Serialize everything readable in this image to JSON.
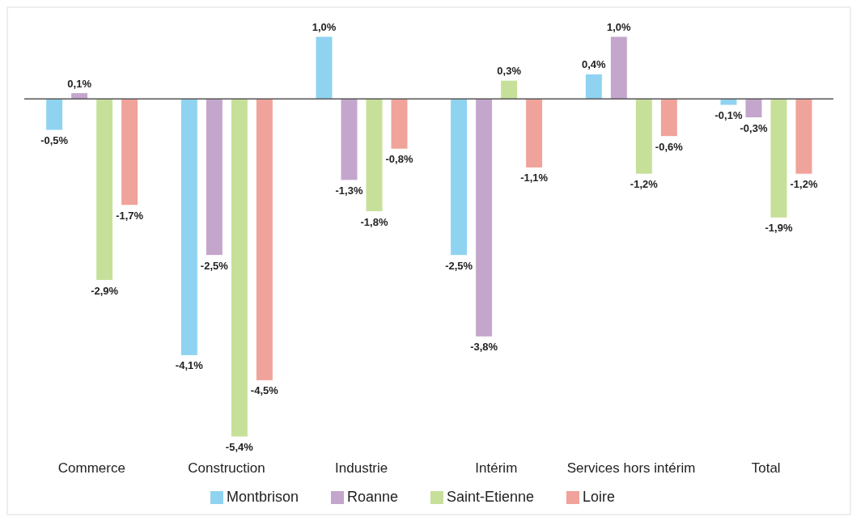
{
  "chart_data": {
    "type": "bar",
    "categories": [
      "Commerce",
      "Construction",
      "Industrie",
      "Intérim",
      "Services hors intérim",
      "Total"
    ],
    "series": [
      {
        "name": "Montbrison",
        "color": "#8fd3f0",
        "values": [
          -0.5,
          -4.1,
          1.0,
          -2.5,
          0.4,
          -0.1
        ],
        "value_labels": [
          "-0,5%",
          "-4,1%",
          "1,0%",
          "-2,5%",
          "0,4%",
          "-0,1%"
        ]
      },
      {
        "name": "Roanne",
        "color": "#c4a6cd",
        "values": [
          0.1,
          -2.5,
          -1.3,
          -3.8,
          1.0,
          -0.3
        ],
        "value_labels": [
          "0,1%",
          "-2,5%",
          "-1,3%",
          "-3,8%",
          "1,0%",
          "-0,3%"
        ]
      },
      {
        "name": "Saint-Etienne",
        "color": "#c6e09a",
        "values": [
          -2.9,
          -5.4,
          -1.8,
          0.3,
          -1.2,
          -1.9
        ],
        "value_labels": [
          "-2,9%",
          "-5,4%",
          "-1,8%",
          "0,3%",
          "-1,2%",
          "-1,9%"
        ]
      },
      {
        "name": "Loire",
        "color": "#f0a39b",
        "values": [
          -1.7,
          -4.5,
          -0.8,
          -1.1,
          -0.6,
          -1.2
        ],
        "value_labels": [
          "-1,7%",
          "-4,5%",
          "-0,8%",
          "-1,1%",
          "-0,6%",
          "-1,2%"
        ]
      }
    ],
    "legend": "bottom",
    "grid": false
  }
}
